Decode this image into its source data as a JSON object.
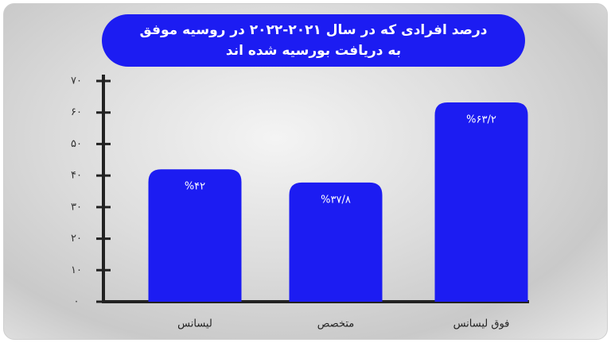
{
  "chart_data": {
    "type": "bar",
    "title": "درصد افرادی که در سال ۲۰۲۱-۲۰۲۲ در روسیه موفق به دریافت بورسیه شده اند",
    "categories": [
      "لیسانس",
      "متخصص",
      "فوق لیسانس"
    ],
    "values": [
      42,
      37.8,
      63.2
    ],
    "value_labels": [
      "%۴۲",
      "%۳۷/۸",
      "%۶۳/۲"
    ],
    "color": "#1c1cf2",
    "ylim": [
      0,
      70
    ],
    "yticks": [
      {
        "value": 0,
        "label": "۰"
      },
      {
        "value": 10,
        "label": "۱۰"
      },
      {
        "value": 20,
        "label": "۲۰"
      },
      {
        "value": 30,
        "label": "۳۰"
      },
      {
        "value": 40,
        "label": "۴۰"
      },
      {
        "value": 50,
        "label": "۵۰"
      },
      {
        "value": 60,
        "label": "۶۰"
      },
      {
        "value": 70,
        "label": "۷۰"
      }
    ]
  }
}
